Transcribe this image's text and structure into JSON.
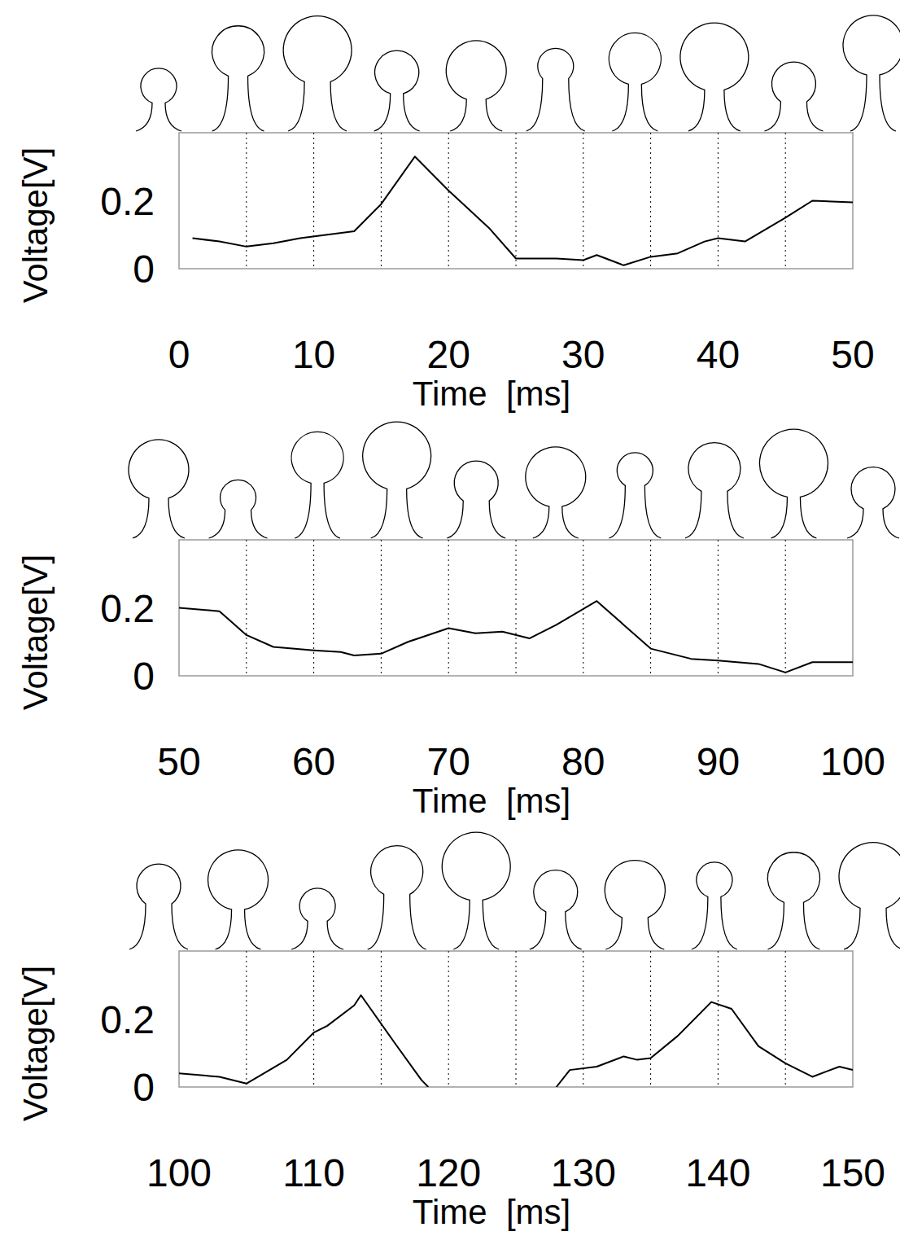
{
  "chart_data": [
    {
      "type": "line",
      "x_label": "Time  [ms]",
      "y_label": "Voltage[V]",
      "xlim": [
        0,
        50
      ],
      "ylim": [
        0,
        0.4
      ],
      "xticks": [
        0,
        10,
        20,
        30,
        40,
        50
      ],
      "yticks": [
        0,
        0.2
      ],
      "grid": true,
      "color": "#000000",
      "x": [
        1,
        3,
        5,
        7,
        9,
        11,
        13,
        15,
        17.5,
        20,
        23,
        25,
        28,
        30,
        31,
        32,
        33,
        35,
        37,
        39,
        40,
        42,
        45,
        47,
        50
      ],
      "values": [
        0.09,
        0.08,
        0.065,
        0.075,
        0.09,
        0.1,
        0.11,
        0.19,
        0.33,
        0.23,
        0.12,
        0.03,
        0.03,
        0.025,
        0.04,
        0.025,
        0.01,
        0.035,
        0.045,
        0.08,
        0.09,
        0.08,
        0.15,
        0.2,
        0.195
      ]
    },
    {
      "type": "line",
      "x_label": "Time  [ms]",
      "y_label": "Voltage[V]",
      "xlim": [
        50,
        100
      ],
      "ylim": [
        0,
        0.4
      ],
      "xticks": [
        50,
        60,
        70,
        80,
        90,
        100
      ],
      "yticks": [
        0,
        0.2
      ],
      "grid": true,
      "color": "#000000",
      "x": [
        50,
        53,
        55,
        57,
        60,
        62,
        63,
        65,
        67,
        70,
        72,
        74,
        76,
        78,
        81,
        83,
        85,
        88,
        90,
        93,
        95,
        97,
        100
      ],
      "values": [
        0.2,
        0.19,
        0.12,
        0.085,
        0.075,
        0.07,
        0.06,
        0.065,
        0.1,
        0.14,
        0.125,
        0.13,
        0.11,
        0.15,
        0.22,
        0.15,
        0.08,
        0.05,
        0.045,
        0.035,
        0.01,
        0.04,
        0.04
      ]
    },
    {
      "type": "line",
      "x_label": "Time  [ms]",
      "y_label": "Voltage[V]",
      "xlim": [
        100,
        150
      ],
      "ylim": [
        0,
        0.4
      ],
      "xticks": [
        100,
        110,
        120,
        130,
        140,
        150
      ],
      "yticks": [
        0,
        0.2
      ],
      "grid": true,
      "color": "#000000",
      "x": [
        100,
        103,
        105,
        108,
        110,
        111,
        113,
        113.5,
        116,
        118,
        118.5,
        123,
        128,
        129,
        131,
        133,
        134,
        135,
        137,
        139.5,
        141,
        143,
        145,
        147,
        149,
        150
      ],
      "values": [
        0.04,
        0.03,
        0.01,
        0.08,
        0.16,
        0.18,
        0.24,
        0.27,
        0.13,
        0.02,
        0.0,
        null,
        0.0,
        0.05,
        0.06,
        0.09,
        0.08,
        0.085,
        0.15,
        0.25,
        0.23,
        0.12,
        0.07,
        0.03,
        0.06,
        0.05
      ]
    }
  ]
}
